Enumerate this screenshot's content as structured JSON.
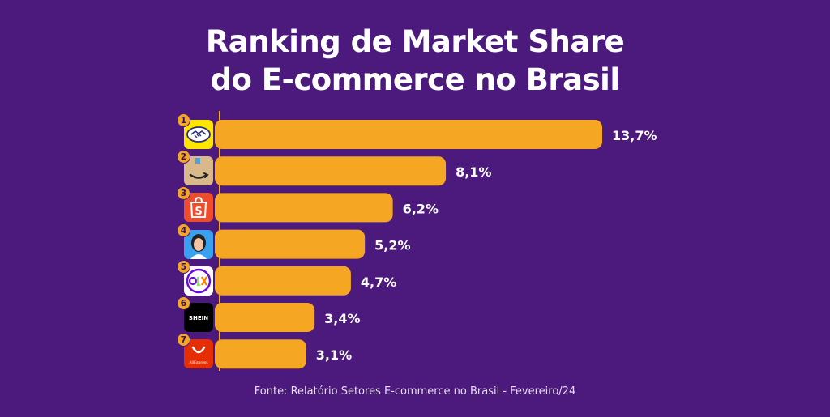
{
  "title_line1": "Ranking de Market Share",
  "title_line2": "do E-commerce no Brasil",
  "source": "Fonte: Relatório Setores E-commerce no Brasil - Fevereiro/24",
  "colors": {
    "background": "#4b1a7c",
    "bar": "#f5a623",
    "axis": "#f5a623"
  },
  "chart_data": {
    "type": "bar",
    "orientation": "horizontal",
    "categories": [
      "Mercado Livre",
      "Amazon",
      "Shopee",
      "Magalu",
      "OLX",
      "Shein",
      "AliExpress"
    ],
    "ranks": [
      "1",
      "2",
      "3",
      "4",
      "5",
      "6",
      "7"
    ],
    "values": [
      13.7,
      8.1,
      6.2,
      5.2,
      4.7,
      3.4,
      3.1
    ],
    "value_labels": [
      "13,7%",
      "8,1%",
      "6,2%",
      "5,2%",
      "4,7%",
      "3,4%",
      "3,1%"
    ],
    "icons": [
      "handshake-icon",
      "amazon-smile-icon",
      "shopping-bag-icon",
      "magalu-avatar-icon",
      "olx-icon",
      "shein-icon",
      "aliexpress-icon"
    ],
    "shein_logo_text": "SHEIN",
    "aliexpress_logo_text": "AliExpress",
    "olx_logo_text": "OLX"
  }
}
